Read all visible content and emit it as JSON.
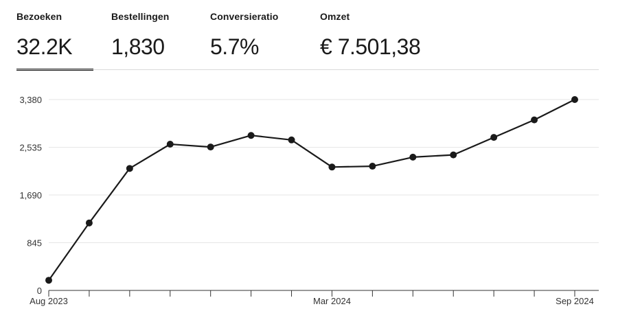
{
  "tabs": [
    {
      "label": "Bezoeken",
      "value": "32.2K",
      "active": true
    },
    {
      "label": "Bestellingen",
      "value": "1,830",
      "active": false
    },
    {
      "label": "Conversieratio",
      "value": "5.7%",
      "active": false
    },
    {
      "label": "Omzet",
      "value": "€ 7.501,38",
      "active": false
    }
  ],
  "colors": {
    "line": "#1a1a1a",
    "grid": "#e6e6e6",
    "axis": "#333333"
  },
  "chart_data": {
    "type": "line",
    "grid": true,
    "x": [
      "2023-08",
      "2023-09",
      "2023-10",
      "2023-11",
      "2023-12",
      "2024-01",
      "2024-02",
      "2024-03",
      "2024-04",
      "2024-05",
      "2024-06",
      "2024-07",
      "2024-08",
      "2024-09"
    ],
    "x_tick_labels": [
      "Aug 2023",
      "",
      "",
      "",
      "",
      "",
      "",
      "Mar 2024",
      "",
      "",
      "",
      "",
      "",
      "Sep 2024"
    ],
    "y_ticks": [
      "0",
      "845",
      "1,690",
      "2,535",
      "3,380"
    ],
    "y_tick_values": [
      0,
      845,
      1690,
      2535,
      3380
    ],
    "ylim": [
      0,
      3380
    ],
    "series": [
      {
        "values": [
          180,
          1195,
          2160,
          2590,
          2540,
          2745,
          2665,
          2185,
          2200,
          2360,
          2400,
          2710,
          3020,
          3380
        ]
      }
    ]
  }
}
